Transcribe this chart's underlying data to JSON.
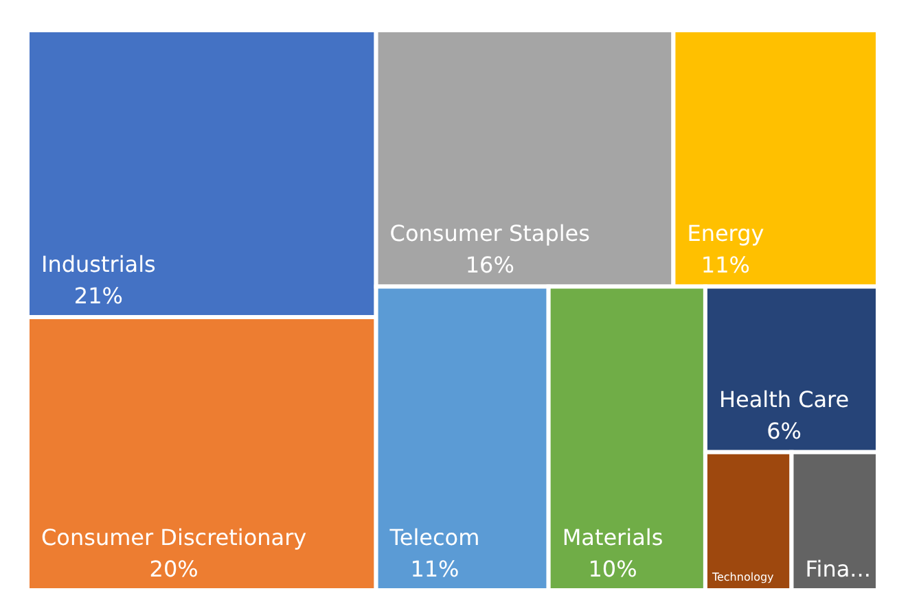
{
  "chart_data": {
    "type": "other",
    "categories": [
      "Industrials",
      "Consumer Discretionary",
      "Consumer Staples",
      "Energy",
      "Telecom",
      "Materials",
      "Health Care",
      "Technology",
      "Fina..."
    ],
    "values": [
      21,
      20,
      16,
      11,
      11,
      10,
      6,
      null,
      null
    ],
    "value_labels": [
      "21%",
      "20%",
      "16%",
      "11%",
      "11%",
      "10%",
      "6%",
      null,
      null
    ],
    "colors": [
      "#4472c4",
      "#ed7d31",
      "#a5a5a5",
      "#ffc000",
      "#5b9bd5",
      "#70ad47",
      "#264478",
      "#9e480e",
      "#636363"
    ]
  }
}
